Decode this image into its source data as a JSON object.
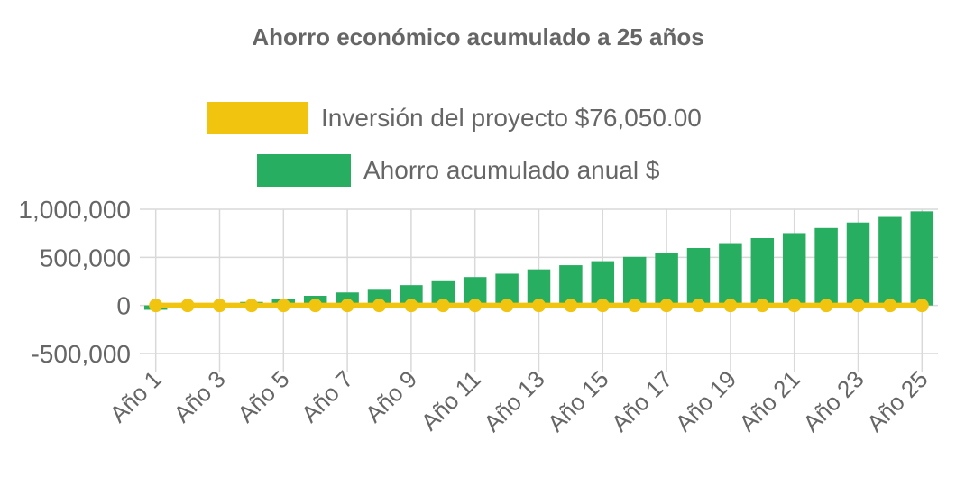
{
  "chart_data": {
    "type": "bar",
    "title": "Ahorro económico acumulado a 25 años",
    "xlabel": "",
    "ylabel": "",
    "ylim": [
      -500000,
      1000000
    ],
    "yticks": [
      1000000,
      500000,
      0,
      -500000
    ],
    "ytick_labels": [
      "1,000,000",
      "500,000",
      "0",
      "-500,000"
    ],
    "categories": [
      "Año 1",
      "Año 2",
      "Año 3",
      "Año 4",
      "Año 5",
      "Año 6",
      "Año 7",
      "Año 8",
      "Año 9",
      "Año 10",
      "Año 11",
      "Año 12",
      "Año 13",
      "Año 14",
      "Año 15",
      "Año 16",
      "Año 17",
      "Año 18",
      "Año 19",
      "Año 20",
      "Año 21",
      "Año 22",
      "Año 23",
      "Año 24",
      "Año 25"
    ],
    "xtick_labels": [
      "Año 1",
      "Año 3",
      "Año 5",
      "Año 7",
      "Año 9",
      "Año 11",
      "Año 13",
      "Año 15",
      "Año 17",
      "Año 19",
      "Año 21",
      "Año 23",
      "Año 25"
    ],
    "series": [
      {
        "name": "Inversión del proyecto $76,050.00",
        "kind": "line",
        "color": "#F1C40F",
        "values": [
          0,
          0,
          0,
          0,
          0,
          0,
          0,
          0,
          0,
          0,
          0,
          0,
          0,
          0,
          0,
          0,
          0,
          0,
          0,
          0,
          0,
          0,
          0,
          0,
          0
        ]
      },
      {
        "name": "Ahorro acumulado anual $",
        "kind": "bar",
        "color": "#27AE60",
        "values": [
          -45000,
          -18000,
          8000,
          37000,
          67000,
          100000,
          135000,
          172000,
          211000,
          252000,
          295000,
          330000,
          375000,
          418000,
          460000,
          505000,
          550000,
          597000,
          648000,
          700000,
          752000,
          805000,
          862000,
          920000,
          978000
        ]
      }
    ],
    "grid": true,
    "legend_position": "top-center"
  }
}
